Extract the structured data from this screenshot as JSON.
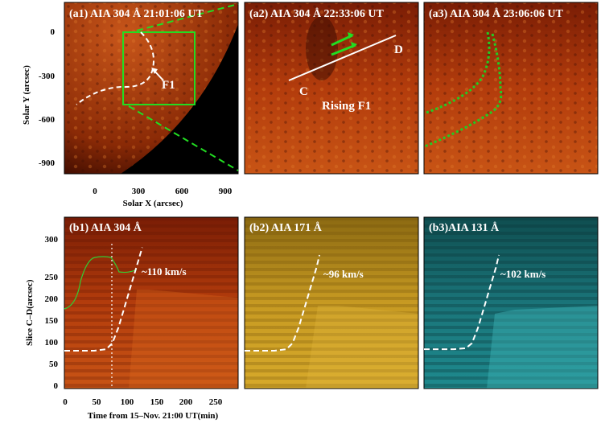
{
  "figure": {
    "top_panels": [
      {
        "title": "(a1) AIA 304 Å  21:01:06 UT"
      },
      {
        "title": "(a2) AIA 304 Å  22:33:06 UT"
      },
      {
        "title": "(a3) AIA 304 Å  23:06:06 UT"
      }
    ],
    "bottom_panels": [
      {
        "title": "(b1) AIA 304 Å",
        "speed": "~110 km/s"
      },
      {
        "title": "(b2) AIA 171 Å",
        "speed": "~96 km/s"
      },
      {
        "title": "(b3)AIA 131 Å",
        "speed": "~102 km/s"
      }
    ],
    "labels": {
      "f1": "F1",
      "rising_f1": "Rising F1",
      "slice_c": "C",
      "slice_d": "D"
    },
    "top_axes": {
      "ylabel": "Solar Y (arcsec)",
      "xlabel": "Solar X (arcsec)",
      "yticks": [
        "0",
        "-300",
        "-600",
        "-900"
      ],
      "xticks": [
        "0",
        "300",
        "600",
        "900"
      ]
    },
    "bottom_axes": {
      "ylabel": "Slice C–D(arcsec)",
      "xlabel": "Time from 15–Nov. 21:00 UT(min)",
      "yticks": [
        "0",
        "50",
        "100",
        "150",
        "200",
        "250",
        "300"
      ],
      "xticks": [
        "0",
        "50",
        "100",
        "150",
        "200",
        "250"
      ]
    },
    "colors": {
      "aia304": "#b03a0a",
      "aia171": "#c9a020",
      "aia131": "#1a7f80",
      "box": "#22dd22"
    }
  },
  "chart_data": [
    {
      "type": "line",
      "title": "(b1) AIA 304 Å",
      "xlabel": "Time from 15–Nov. 21:00 UT(min)",
      "ylabel": "Slice C–D(arcsec)",
      "xlim": [
        0,
        290
      ],
      "ylim": [
        0,
        340
      ],
      "series": [
        {
          "x": [
            0,
            50,
            70,
            80,
            90,
            100,
            110,
            120,
            130
          ],
          "y": [
            75,
            75,
            78,
            90,
            120,
            160,
            200,
            240,
            280
          ]
        }
      ],
      "annotation": "~110 km/s"
    },
    {
      "type": "line",
      "title": "(b2) AIA 171 Å",
      "series": [
        {
          "x": [
            0,
            50,
            70,
            80,
            90,
            100,
            110,
            120,
            125
          ],
          "y": [
            75,
            75,
            78,
            90,
            120,
            160,
            200,
            240,
            265
          ]
        }
      ],
      "annotation": "~96 km/s"
    },
    {
      "type": "line",
      "title": "(b3)AIA 131 Å",
      "series": [
        {
          "x": [
            0,
            50,
            70,
            80,
            90,
            100,
            110,
            120,
            125
          ],
          "y": [
            78,
            78,
            80,
            90,
            120,
            160,
            200,
            240,
            265
          ]
        }
      ],
      "annotation": "~102 km/s"
    }
  ]
}
